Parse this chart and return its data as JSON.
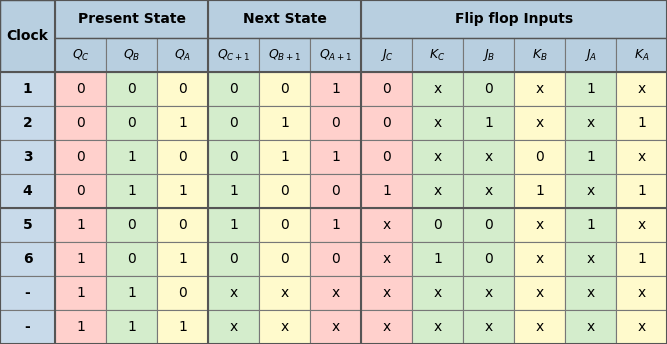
{
  "rows": [
    [
      "1",
      "0",
      "0",
      "0",
      "0",
      "0",
      "1",
      "0",
      "x",
      "0",
      "x",
      "1",
      "x"
    ],
    [
      "2",
      "0",
      "0",
      "1",
      "0",
      "1",
      "0",
      "0",
      "x",
      "1",
      "x",
      "x",
      "1"
    ],
    [
      "3",
      "0",
      "1",
      "0",
      "0",
      "1",
      "1",
      "0",
      "x",
      "x",
      "0",
      "1",
      "x"
    ],
    [
      "4",
      "0",
      "1",
      "1",
      "1",
      "0",
      "0",
      "1",
      "x",
      "x",
      "1",
      "x",
      "1"
    ],
    [
      "5",
      "1",
      "0",
      "0",
      "1",
      "0",
      "1",
      "x",
      "0",
      "0",
      "x",
      "1",
      "x"
    ],
    [
      "6",
      "1",
      "0",
      "1",
      "0",
      "0",
      "0",
      "x",
      "1",
      "0",
      "x",
      "x",
      "1"
    ],
    [
      "-",
      "1",
      "1",
      "0",
      "x",
      "x",
      "x",
      "x",
      "x",
      "x",
      "x",
      "x",
      "x"
    ],
    [
      "-",
      "1",
      "1",
      "1",
      "x",
      "x",
      "x",
      "x",
      "x",
      "x",
      "x",
      "x",
      "x"
    ]
  ],
  "col_labels": [
    [
      "Q",
      "C"
    ],
    [
      "Q",
      "B"
    ],
    [
      "Q",
      "A"
    ],
    [
      "Q",
      "C+1"
    ],
    [
      "Q",
      "B+1"
    ],
    [
      "Q",
      "A+1"
    ],
    [
      "J",
      "C"
    ],
    [
      "K",
      "C"
    ],
    [
      "J",
      "B"
    ],
    [
      "K",
      "B"
    ],
    [
      "J",
      "A"
    ],
    [
      "K",
      "A"
    ]
  ],
  "header_bg": "#b8cfe0",
  "clock_data_bg": "#c8daea",
  "col_data_colors": [
    "#ffd0cc",
    "#d4edcc",
    "#fffacc",
    "#d4edcc",
    "#fffacc",
    "#ffd0cc",
    "#ffd0cc",
    "#d4edcc",
    "#d4edcc",
    "#fffacc",
    "#d4edcc",
    "#fffacc"
  ],
  "border_color": "#777777",
  "thick_border": "#555555"
}
